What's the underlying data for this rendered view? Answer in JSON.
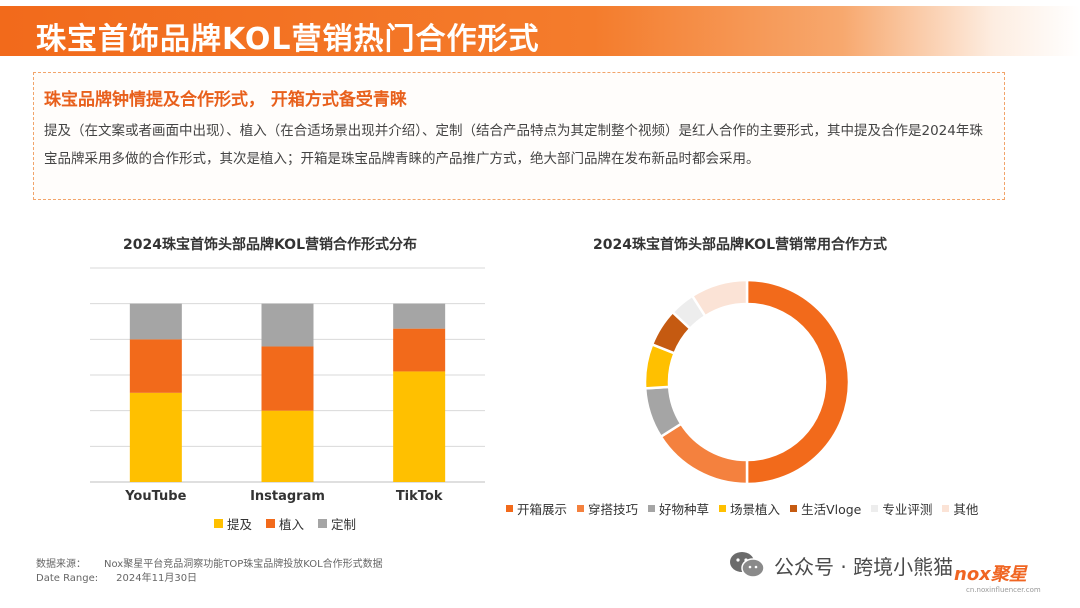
{
  "page": {
    "title": "珠宝首饰品牌KOL营销热门合作形式"
  },
  "summary": {
    "title": "珠宝品牌钟情提及合作形式， 开箱方式备受青睐",
    "body": "提及（在文案或者画面中出现）、植入（在合适场景出现并介绍）、定制（结合产品特点为其定制整个视频）是红人合作的主要形式，其中提及合作是2024年珠宝品牌采用多做的合作形式，其次是植入；开箱是珠宝品牌青睐的产品推广方式，绝大部门品牌在发布新品时都会采用。"
  },
  "colors": {
    "accent": "#f26a1b",
    "mention": "#ffc000",
    "placement": "#f26a1b",
    "custom": "#a5a5a5"
  },
  "chart_data": [
    {
      "type": "bar",
      "stacked": true,
      "title": "2024珠宝首饰头部品牌KOL营销合作形式分布",
      "categories": [
        "YouTube",
        "Instagram",
        "TikTok"
      ],
      "series": [
        {
          "name": "提及",
          "values": [
            0.5,
            0.4,
            0.62
          ],
          "color": "#ffc000"
        },
        {
          "name": "植入",
          "values": [
            0.3,
            0.36,
            0.24
          ],
          "color": "#f26a1b"
        },
        {
          "name": "定制",
          "values": [
            0.2,
            0.24,
            0.14
          ],
          "color": "#a5a5a5"
        }
      ],
      "ylim": [
        0,
        1.2
      ],
      "grid": true,
      "legend": "bottom"
    },
    {
      "type": "pie",
      "donut": true,
      "title": "2024珠宝首饰头部品牌KOL营销常用合作方式",
      "labels": [
        "开箱展示",
        "穿搭技巧",
        "好物种草",
        "场景植入",
        "生活Vloge",
        "专业评测",
        "其他"
      ],
      "values": [
        50,
        16,
        8,
        7,
        6,
        4,
        9
      ],
      "colors": [
        "#f26a1b",
        "#f4813e",
        "#a5a5a5",
        "#ffc000",
        "#c55a11",
        "#ededed",
        "#fbe3d6"
      ],
      "legend": "bottom"
    }
  ],
  "source": {
    "label": "数据来源：",
    "value": "Nox聚星平台竞品洞察功能TOP珠宝品牌投放KOL合作形式数据",
    "date_label": "Date Range:",
    "date_value": "2024年11月30日"
  },
  "watermark": {
    "text": "公众号 · 跨境小熊猫",
    "icon": "wechat-icon"
  },
  "logo": {
    "text": "nox聚星",
    "url": "cn.noxinfluencer.com"
  }
}
